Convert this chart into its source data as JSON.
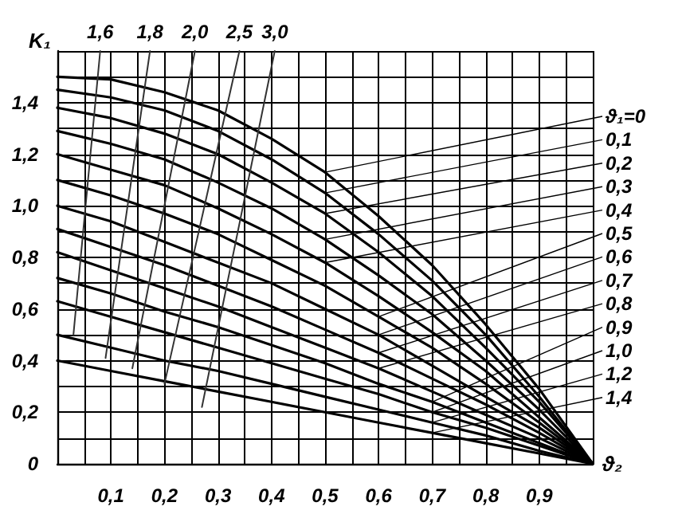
{
  "chart_data": {
    "type": "line",
    "ylabel": "K₁",
    "xlabel": "ϑ₂",
    "xlim": [
      0,
      1
    ],
    "ylim": [
      0,
      1.6
    ],
    "xticks": [
      {
        "value": 0,
        "label": null
      },
      {
        "value": 0.05,
        "label": null
      },
      {
        "value": 0.1,
        "label": "0,1"
      },
      {
        "value": 0.15,
        "label": null
      },
      {
        "value": 0.2,
        "label": "0,2"
      },
      {
        "value": 0.25,
        "label": null
      },
      {
        "value": 0.3,
        "label": "0,3"
      },
      {
        "value": 0.35,
        "label": null
      },
      {
        "value": 0.4,
        "label": "0,4"
      },
      {
        "value": 0.45,
        "label": null
      },
      {
        "value": 0.5,
        "label": "0,5"
      },
      {
        "value": 0.55,
        "label": null
      },
      {
        "value": 0.6,
        "label": "0,6"
      },
      {
        "value": 0.65,
        "label": null
      },
      {
        "value": 0.7,
        "label": "0,7"
      },
      {
        "value": 0.75,
        "label": null
      },
      {
        "value": 0.8,
        "label": "0,8"
      },
      {
        "value": 0.85,
        "label": null
      },
      {
        "value": 0.9,
        "label": "0,9"
      },
      {
        "value": 0.95,
        "label": null
      },
      {
        "value": 1,
        "label": null
      }
    ],
    "yticks": [
      {
        "value": 0,
        "label": "0"
      },
      {
        "value": 0.1,
        "label": null
      },
      {
        "value": 0.2,
        "label": "0,2"
      },
      {
        "value": 0.3,
        "label": null
      },
      {
        "value": 0.4,
        "label": "0,4"
      },
      {
        "value": 0.5,
        "label": null
      },
      {
        "value": 0.6,
        "label": "0,6"
      },
      {
        "value": 0.7,
        "label": null
      },
      {
        "value": 0.8,
        "label": "0,8"
      },
      {
        "value": 0.9,
        "label": null
      },
      {
        "value": 1,
        "label": "1,0"
      },
      {
        "value": 1.1,
        "label": null
      },
      {
        "value": 1.2,
        "label": "1,2"
      },
      {
        "value": 1.3,
        "label": null
      },
      {
        "value": 1.4,
        "label": "1,4"
      },
      {
        "value": 1.5,
        "label": null
      },
      {
        "value": 1.6,
        "label": null
      }
    ],
    "grid": true,
    "marker": "none",
    "line_style": "solid",
    "x": [
      0,
      0.1,
      0.2,
      0.3,
      0.4,
      0.5,
      0.6,
      0.7,
      0.8,
      0.9,
      1
    ],
    "series": [
      {
        "color": "#000000",
        "values": [
          1.5,
          1.49,
          1.44,
          1.37,
          1.26,
          1.13,
          0.96,
          0.77,
          0.54,
          0.29,
          0
        ]
      },
      {
        "color": "#000000",
        "values": [
          1.45,
          1.42,
          1.37,
          1.29,
          1.18,
          1.05,
          0.89,
          0.71,
          0.5,
          0.26,
          0
        ]
      },
      {
        "color": "#000000",
        "values": [
          1.38,
          1.34,
          1.28,
          1.2,
          1.09,
          0.97,
          0.82,
          0.65,
          0.45,
          0.24,
          0
        ]
      },
      {
        "color": "#000000",
        "values": [
          1.29,
          1.24,
          1.18,
          1.09,
          0.99,
          0.87,
          0.73,
          0.58,
          0.4,
          0.21,
          0
        ]
      },
      {
        "color": "#000000",
        "values": [
          1.2,
          1.14,
          1.08,
          0.99,
          0.89,
          0.78,
          0.65,
          0.51,
          0.36,
          0.18,
          0
        ]
      },
      {
        "color": "#000000",
        "values": [
          1.1,
          1.04,
          0.97,
          0.89,
          0.79,
          0.69,
          0.57,
          0.45,
          0.31,
          0.16,
          0
        ]
      },
      {
        "color": "#000000",
        "values": [
          1.0,
          0.94,
          0.86,
          0.78,
          0.7,
          0.6,
          0.5,
          0.38,
          0.26,
          0.14,
          0
        ]
      },
      {
        "color": "#000000",
        "values": [
          0.91,
          0.84,
          0.77,
          0.69,
          0.61,
          0.52,
          0.43,
          0.33,
          0.23,
          0.12,
          0
        ]
      },
      {
        "color": "#000000",
        "values": [
          0.82,
          0.75,
          0.68,
          0.61,
          0.53,
          0.45,
          0.37,
          0.28,
          0.19,
          0.1,
          0
        ]
      },
      {
        "color": "#000000",
        "values": [
          0.72,
          0.66,
          0.59,
          0.53,
          0.46,
          0.39,
          0.31,
          0.24,
          0.16,
          0.08,
          0
        ]
      },
      {
        "color": "#000000",
        "values": [
          0.63,
          0.57,
          0.51,
          0.45,
          0.39,
          0.33,
          0.27,
          0.2,
          0.14,
          0.07,
          0
        ]
      },
      {
        "color": "#000000",
        "values": [
          0.5,
          0.45,
          0.4,
          0.36,
          0.31,
          0.26,
          0.21,
          0.16,
          0.11,
          0.05,
          0
        ]
      },
      {
        "color": "#000000",
        "values": [
          0.4,
          0.36,
          0.32,
          0.28,
          0.24,
          0.2,
          0.16,
          0.12,
          0.08,
          0.04,
          0
        ]
      },
      {
        "color": "#333333",
        "x": [
          0.03,
          0.08
        ],
        "values": [
          0.5,
          1.6
        ]
      },
      {
        "color": "#333333",
        "x": [
          0.09,
          0.173
        ],
        "values": [
          0.41,
          1.6
        ]
      },
      {
        "color": "#333333",
        "x": [
          0.14,
          0.257
        ],
        "values": [
          0.37,
          1.6
        ]
      },
      {
        "color": "#333333",
        "x": [
          0.2,
          0.34
        ],
        "values": [
          0.31,
          1.6
        ]
      },
      {
        "color": "#333333",
        "x": [
          0.27,
          0.406
        ],
        "values": [
          0.22,
          1.6
        ]
      }
    ],
    "annotations": [
      {
        "text": "1,6",
        "x": 0.08,
        "y": 1.6
      },
      {
        "text": "1,8",
        "x": 0.173,
        "y": 1.6
      },
      {
        "text": "2,0",
        "x": 0.257,
        "y": 1.6
      },
      {
        "text": "2,5",
        "x": 0.34,
        "y": 1.6
      },
      {
        "text": "3,0",
        "x": 0.406,
        "y": 1.6
      },
      {
        "text": "ϑ₁=0",
        "x": 0.5,
        "y": 1.13
      },
      {
        "text": "0,1",
        "x": 0.5,
        "y": 1.05
      },
      {
        "text": "0,2",
        "x": 0.5,
        "y": 0.97
      },
      {
        "text": "0,3",
        "x": 0.5,
        "y": 0.87
      },
      {
        "text": "0,4",
        "x": 0.5,
        "y": 0.78
      },
      {
        "text": "0,5",
        "x": 0.6,
        "y": 0.57
      },
      {
        "text": "0,6",
        "x": 0.6,
        "y": 0.5
      },
      {
        "text": "0,7",
        "x": 0.6,
        "y": 0.43
      },
      {
        "text": "0,8",
        "x": 0.6,
        "y": 0.37
      },
      {
        "text": "0,9",
        "x": 0.7,
        "y": 0.24
      },
      {
        "text": "1,0",
        "x": 0.7,
        "y": 0.2
      },
      {
        "text": "1,2",
        "x": 0.7,
        "y": 0.16
      },
      {
        "text": "1,4",
        "x": 0.7,
        "y": 0.12
      }
    ]
  }
}
